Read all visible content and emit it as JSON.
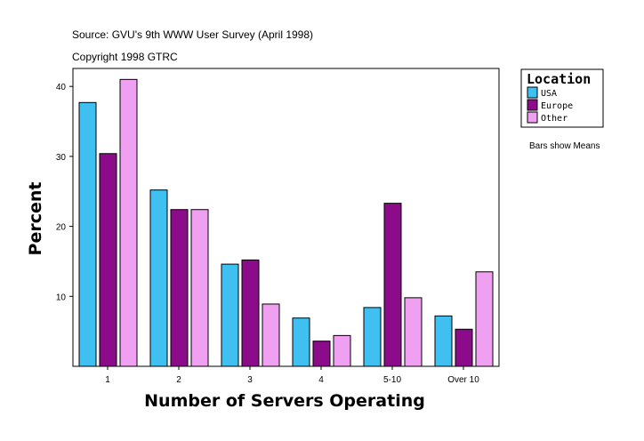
{
  "chart_data": {
    "type": "bar",
    "source_text": "Source: GVU's 9th WWW User Survey (April 1998)",
    "copyright_text": "Copyright 1998 GTRC",
    "xlabel": "Number of Servers Operating",
    "ylabel": "Percent",
    "categories": [
      "1",
      "2",
      "3",
      "4",
      "5-10",
      "Over 10"
    ],
    "yticks": [
      "10",
      "20",
      "30",
      "40"
    ],
    "ylim": [
      0,
      42.5
    ],
    "grid": false,
    "legend": {
      "title": "Location",
      "placement": "right",
      "note": "Bars show Means"
    },
    "series": [
      {
        "name": "USA",
        "color": "#40c0f0",
        "values": [
          37.7,
          25.2,
          14.6,
          6.9,
          8.4,
          7.2
        ]
      },
      {
        "name": "Europe",
        "color": "#8b0b8b",
        "values": [
          30.4,
          22.4,
          15.2,
          3.6,
          23.3,
          5.3
        ]
      },
      {
        "name": "Other",
        "color": "#f0a0f0",
        "values": [
          41.0,
          22.4,
          8.9,
          4.4,
          9.8,
          13.5
        ]
      }
    ]
  }
}
